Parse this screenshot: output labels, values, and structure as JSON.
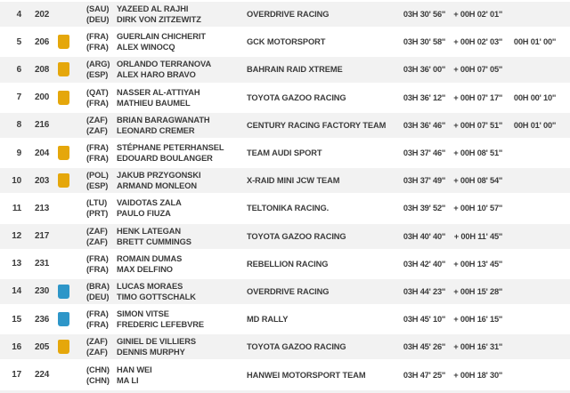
{
  "table": {
    "badge_colors": {
      "yellow": "#E5A70B",
      "blue": "#2E96C8"
    },
    "stripe_color": "#f2f2f2",
    "text_color": "#3b3b3b",
    "rows": [
      {
        "pos": "4",
        "num": "202",
        "badge": "none",
        "crew": [
          {
            "country": "(SAU)",
            "name": "YAZEED AL RAJHI"
          },
          {
            "country": "(DEU)",
            "name": "DIRK VON ZITZEWITZ"
          }
        ],
        "team": "OVERDRIVE RACING",
        "time": "03H 30' 56''",
        "gap": "+ 00H 02' 01''",
        "penalty": ""
      },
      {
        "pos": "5",
        "num": "206",
        "badge": "yellow",
        "crew": [
          {
            "country": "(FRA)",
            "name": "GUERLAIN CHICHERIT"
          },
          {
            "country": "(FRA)",
            "name": "ALEX WINOCQ"
          }
        ],
        "team": "GCK MOTORSPORT",
        "time": "03H 30' 58''",
        "gap": "+ 00H 02' 03''",
        "penalty": "00H 01' 00''"
      },
      {
        "pos": "6",
        "num": "208",
        "badge": "yellow",
        "crew": [
          {
            "country": "(ARG)",
            "name": "ORLANDO TERRANOVA"
          },
          {
            "country": "(ESP)",
            "name": "ALEX HARO BRAVO"
          }
        ],
        "team": "BAHRAIN RAID XTREME",
        "time": "03H 36' 00''",
        "gap": "+ 00H 07' 05''",
        "penalty": ""
      },
      {
        "pos": "7",
        "num": "200",
        "badge": "yellow",
        "crew": [
          {
            "country": "(QAT)",
            "name": "NASSER AL-ATTIYAH"
          },
          {
            "country": "(FRA)",
            "name": "MATHIEU BAUMEL"
          }
        ],
        "team": "TOYOTA GAZOO RACING",
        "time": "03H 36' 12''",
        "gap": "+ 00H 07' 17''",
        "penalty": "00H 00' 10''"
      },
      {
        "pos": "8",
        "num": "216",
        "badge": "none",
        "crew": [
          {
            "country": "(ZAF)",
            "name": "BRIAN BARAGWANATH"
          },
          {
            "country": "(ZAF)",
            "name": "LEONARD CREMER"
          }
        ],
        "team": "CENTURY RACING FACTORY TEAM",
        "time": "03H 36' 46''",
        "gap": "+ 00H 07' 51''",
        "penalty": "00H 01' 00''"
      },
      {
        "pos": "9",
        "num": "204",
        "badge": "yellow",
        "crew": [
          {
            "country": "(FRA)",
            "name": "STÉPHANE PETERHANSEL"
          },
          {
            "country": "(FRA)",
            "name": "EDOUARD BOULANGER"
          }
        ],
        "team": "TEAM AUDI SPORT",
        "time": "03H 37' 46''",
        "gap": "+ 00H 08' 51''",
        "penalty": ""
      },
      {
        "pos": "10",
        "num": "203",
        "badge": "yellow",
        "crew": [
          {
            "country": "(POL)",
            "name": "JAKUB PRZYGONSKI"
          },
          {
            "country": "(ESP)",
            "name": "ARMAND MONLEON"
          }
        ],
        "team": "X-RAID MINI JCW TEAM",
        "time": "03H 37' 49''",
        "gap": "+ 00H 08' 54''",
        "penalty": ""
      },
      {
        "pos": "11",
        "num": "213",
        "badge": "none",
        "crew": [
          {
            "country": "(LTU)",
            "name": "VAIDOTAS ZALA"
          },
          {
            "country": "(PRT)",
            "name": "PAULO FIUZA"
          }
        ],
        "team": "TELTONIKA RACING.",
        "time": "03H 39' 52''",
        "gap": "+ 00H 10' 57''",
        "penalty": ""
      },
      {
        "pos": "12",
        "num": "217",
        "badge": "none",
        "crew": [
          {
            "country": "(ZAF)",
            "name": "HENK LATEGAN"
          },
          {
            "country": "(ZAF)",
            "name": "BRETT CUMMINGS"
          }
        ],
        "team": "TOYOTA GAZOO RACING",
        "time": "03H 40' 40''",
        "gap": "+ 00H 11' 45''",
        "penalty": ""
      },
      {
        "pos": "13",
        "num": "231",
        "badge": "none",
        "crew": [
          {
            "country": "(FRA)",
            "name": "ROMAIN DUMAS"
          },
          {
            "country": "(FRA)",
            "name": "MAX DELFINO"
          }
        ],
        "team": "REBELLION RACING",
        "time": "03H 42' 40''",
        "gap": "+ 00H 13' 45''",
        "penalty": ""
      },
      {
        "pos": "14",
        "num": "230",
        "badge": "blue",
        "crew": [
          {
            "country": "(BRA)",
            "name": "LUCAS MORAES"
          },
          {
            "country": "(DEU)",
            "name": "TIMO GOTTSCHALK"
          }
        ],
        "team": "OVERDRIVE RACING",
        "time": "03H 44' 23''",
        "gap": "+ 00H 15' 28''",
        "penalty": ""
      },
      {
        "pos": "15",
        "num": "236",
        "badge": "blue",
        "crew": [
          {
            "country": "(FRA)",
            "name": "SIMON VITSE"
          },
          {
            "country": "(FRA)",
            "name": "FREDERIC LEFEBVRE"
          }
        ],
        "team": "MD RALLY",
        "time": "03H 45' 10''",
        "gap": "+ 00H 16' 15''",
        "penalty": ""
      },
      {
        "pos": "16",
        "num": "205",
        "badge": "yellow",
        "crew": [
          {
            "country": "(ZAF)",
            "name": "GINIEL DE VILLIERS"
          },
          {
            "country": "(ZAF)",
            "name": "DENNIS MURPHY"
          }
        ],
        "team": "TOYOTA GAZOO RACING",
        "time": "03H 45' 26''",
        "gap": "+ 00H 16' 31''",
        "penalty": ""
      },
      {
        "pos": "17",
        "num": "224",
        "badge": "none",
        "crew": [
          {
            "country": "(CHN)",
            "name": "HAN WEI"
          },
          {
            "country": "(CHN)",
            "name": "MA LI"
          }
        ],
        "team": "HANWEI MOTORSPORT TEAM",
        "time": "03H 47' 25''",
        "gap": "+ 00H 18' 30''",
        "penalty": ""
      }
    ]
  }
}
